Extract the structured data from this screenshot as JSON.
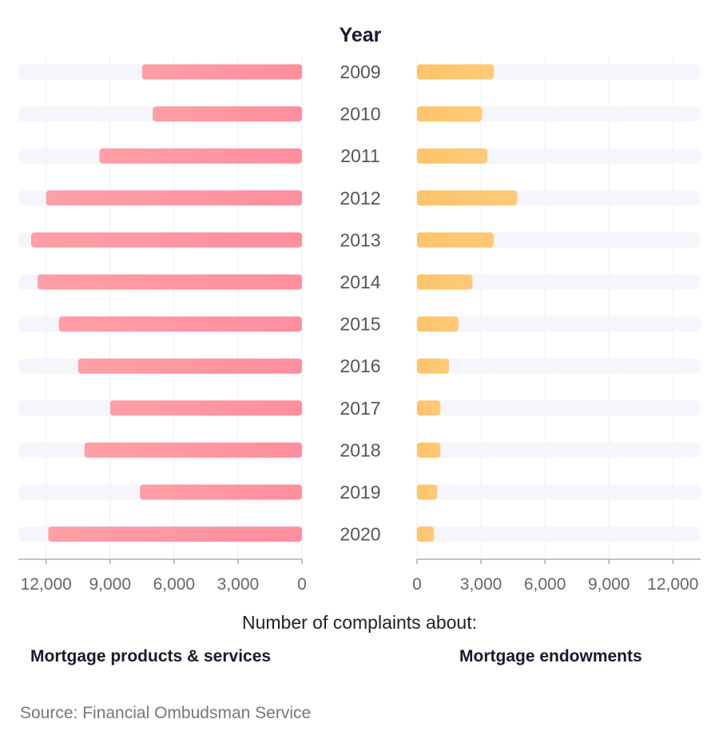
{
  "chart_data": {
    "type": "bar",
    "title": "Year",
    "categories": [
      "2009",
      "2010",
      "2011",
      "2012",
      "2013",
      "2014",
      "2015",
      "2016",
      "2017",
      "2018",
      "2019",
      "2020"
    ],
    "series": [
      {
        "name": "Mortgage products & services",
        "values": [
          7500,
          7000,
          9500,
          12000,
          12700,
          12400,
          11400,
          10500,
          9000,
          10200,
          7600,
          11900
        ],
        "color": "#ff8f9e"
      },
      {
        "name": "Mortgage endowments",
        "values": [
          3600,
          3050,
          3300,
          4700,
          3600,
          2600,
          1950,
          1500,
          1100,
          1100,
          950,
          800
        ],
        "color": "#ffc46b"
      }
    ],
    "xlabel": "Number of complaints about:",
    "xlim": [
      0,
      13300
    ],
    "xticks": [
      0,
      3000,
      6000,
      9000,
      12000
    ],
    "xtick_labels": [
      "0",
      "3,000",
      "6,000",
      "9,000",
      "12,000"
    ],
    "grid": true,
    "track_color": "#f4f6fc"
  },
  "source": "Source: Financial Ombudsman Service"
}
